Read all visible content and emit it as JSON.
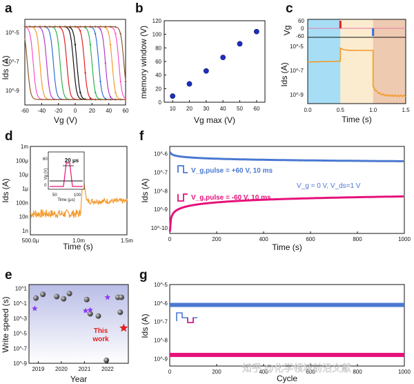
{
  "panel_labels": [
    "a",
    "b",
    "c",
    "d",
    "e",
    "f",
    "g"
  ],
  "watermark": "知乎 @化学领域前沿文献",
  "colors": {
    "orange": "#f39a2b",
    "blue": "#4a78d1",
    "magenta": "#e6107a",
    "purple": "#8c3cf0",
    "red": "#e02020",
    "gray_ball": "#6b6b6b",
    "light_blue": "#a7def5",
    "light_yellow": "#fbeccf",
    "light_brown": "#eecab1"
  },
  "chart_data": [
    {
      "panel": "a",
      "type": "line",
      "xlabel": "Vg (V)",
      "ylabel": "Ids (A)",
      "x_ticks": [
        "-60",
        "-40",
        "-20",
        "0",
        "20",
        "40",
        "60"
      ],
      "y_ticks": [
        "10^-9",
        "10^-7",
        "10^-5"
      ],
      "xlim": [
        -60,
        60
      ],
      "ylim_log": [
        -9.3,
        -4.6
      ],
      "off_current_log": -9.0,
      "on_current_log": -5.0,
      "series": [
        {
          "color": "#111111",
          "down": -2,
          "up": 2
        },
        {
          "color": "#e02020",
          "down": -10,
          "up": 11
        },
        {
          "color": "#2cb34a",
          "down": -18,
          "up": 20
        },
        {
          "color": "#2e6fd8",
          "down": -26,
          "up": 28
        },
        {
          "color": "#b33cc8",
          "down": -34,
          "up": 36
        },
        {
          "color": "#f39a2b",
          "down": -42,
          "up": 44
        },
        {
          "color": "#ff4fc8",
          "down": -50,
          "up": 52
        },
        {
          "color": "#8b5a2b",
          "down": -57,
          "up": 58
        }
      ]
    },
    {
      "panel": "b",
      "type": "scatter",
      "xlabel": "Vg max (V)",
      "ylabel": "memory window (V)",
      "xlim": [
        5,
        65
      ],
      "ylim": [
        0,
        120
      ],
      "x_ticks": [
        10,
        20,
        30,
        40,
        50,
        60
      ],
      "y_ticks": [
        0,
        20,
        40,
        60,
        80,
        100,
        120
      ],
      "x": [
        10,
        20,
        30,
        40,
        50,
        60
      ],
      "y": [
        9,
        27,
        46,
        66,
        86,
        104
      ]
    },
    {
      "panel": "c",
      "type": "line",
      "xlabel": "Time (s)",
      "ylabel_top": "Vg",
      "ylabel_bottom": "Ids (A)",
      "x_ticks": [
        "0.0",
        "0.5",
        "1.0",
        "1.5"
      ],
      "xlim": [
        0,
        1.5
      ],
      "top_ticks": [
        "60",
        "0",
        "-60"
      ],
      "bottom_ticks": [
        "10^-9",
        "10^-7",
        "10^-5"
      ],
      "regions": [
        [
          0,
          0.5
        ],
        [
          0.5,
          1.0
        ],
        [
          1.0,
          1.5
        ]
      ],
      "pulses": [
        {
          "t": 0.5,
          "v": 60
        },
        {
          "t": 1.0,
          "v": -60
        }
      ],
      "ids_segments": [
        {
          "t": [
            0.0,
            0.5
          ],
          "log": [
            -6.6,
            -6.55
          ]
        },
        {
          "t": [
            0.5,
            1.0
          ],
          "log": [
            -5.7,
            -5.85
          ]
        },
        {
          "t": [
            1.0,
            1.5
          ],
          "log": [
            -8.2,
            -8.8
          ]
        }
      ]
    },
    {
      "panel": "d",
      "type": "line",
      "xlabel": "Time (s)",
      "ylabel": "Ids (A)",
      "x_ticks": [
        "500.0μ",
        "1.0m",
        "1.5m"
      ],
      "xlim_us": [
        500,
        1500
      ],
      "y_ticks": [
        "1n",
        "10n",
        "100n",
        "1μ",
        "10μ",
        "100μ",
        "1m"
      ],
      "ylim_log": [
        -9.3,
        -3.0
      ],
      "spike_t_us": 1040,
      "inset": {
        "ylabel": "Vg (V)",
        "xlabel": "Time (μs)",
        "x_ticks": [
          "50",
          "100"
        ],
        "y_ticks": [
          "0",
          "60"
        ],
        "annotation": "20 μs"
      }
    },
    {
      "panel": "e",
      "type": "scatter",
      "xlabel": "Year",
      "ylabel": "Write speed (s)",
      "x_ticks": [
        "2019",
        "2020",
        "2021",
        "2022"
      ],
      "xlim": [
        2018.6,
        2022.9
      ],
      "y_ticks": [
        "10^-9",
        "10^-7",
        "10^-5",
        "10^-3",
        "10^-1",
        "10^1"
      ],
      "ylim_log": [
        -9,
        1.5
      ],
      "spheres": [
        {
          "x": 2018.9,
          "y": -0.3
        },
        {
          "x": 2019.2,
          "y": 0.2
        },
        {
          "x": 2019.8,
          "y": -0.1
        },
        {
          "x": 2020.1,
          "y": -0.4
        },
        {
          "x": 2020.35,
          "y": 0.3
        },
        {
          "x": 2021.1,
          "y": -0.5
        },
        {
          "x": 2021.25,
          "y": -2.4
        },
        {
          "x": 2021.6,
          "y": -2.7
        },
        {
          "x": 2021.95,
          "y": -8.6
        },
        {
          "x": 2022.45,
          "y": -0.2
        },
        {
          "x": 2022.6,
          "y": -0.2
        },
        {
          "x": 2022.55,
          "y": -2.2
        }
      ],
      "stars": [
        {
          "x": 2018.85,
          "y": -1.7
        },
        {
          "x": 2021.05,
          "y": -2.0
        },
        {
          "x": 2021.25,
          "y": -1.9
        },
        {
          "x": 2022.0,
          "y": -0.2
        }
      ],
      "this_work": {
        "x": 2022.7,
        "y": -4.3,
        "label": "This work"
      }
    },
    {
      "panel": "f",
      "type": "line",
      "xlabel": "Time (s)",
      "ylabel": "Ids (A)",
      "x_ticks": [
        "0",
        "200",
        "400",
        "600",
        "800",
        "1000"
      ],
      "xlim": [
        0,
        1000
      ],
      "y_ticks": [
        "10^-10",
        "10^-9",
        "10^-8",
        "10^-7",
        "10^-6"
      ],
      "ylim_log": [
        -10.3,
        -5.6
      ],
      "legend": {
        "pos": "V_g,pulse = +60 V, 10 ms",
        "neg": "V_g,pulse = -60 V, 10 ms",
        "cond": "V_g = 0 V, V_ds=1 V"
      },
      "series": [
        {
          "color": "#4a78d1",
          "t0": -5.9,
          "t_end": -6.4
        },
        {
          "color": "#e6107a",
          "t0": -10.2,
          "t_end": -8.3
        }
      ]
    },
    {
      "panel": "g",
      "type": "line",
      "xlabel": "Cycle",
      "ylabel": "Ids (A)",
      "x_ticks": [
        "0",
        "200",
        "400",
        "600",
        "800",
        "1000"
      ],
      "xlim": [
        0,
        1000
      ],
      "y_ticks": [
        "10^-9",
        "10^-8",
        "10^-7",
        "10^-6",
        "10^-5"
      ],
      "ylim_log": [
        -9.4,
        -5.0
      ],
      "series": [
        {
          "color": "#4a78d1",
          "level": -6.1
        },
        {
          "color": "#e6107a",
          "level": -8.8
        }
      ]
    }
  ]
}
